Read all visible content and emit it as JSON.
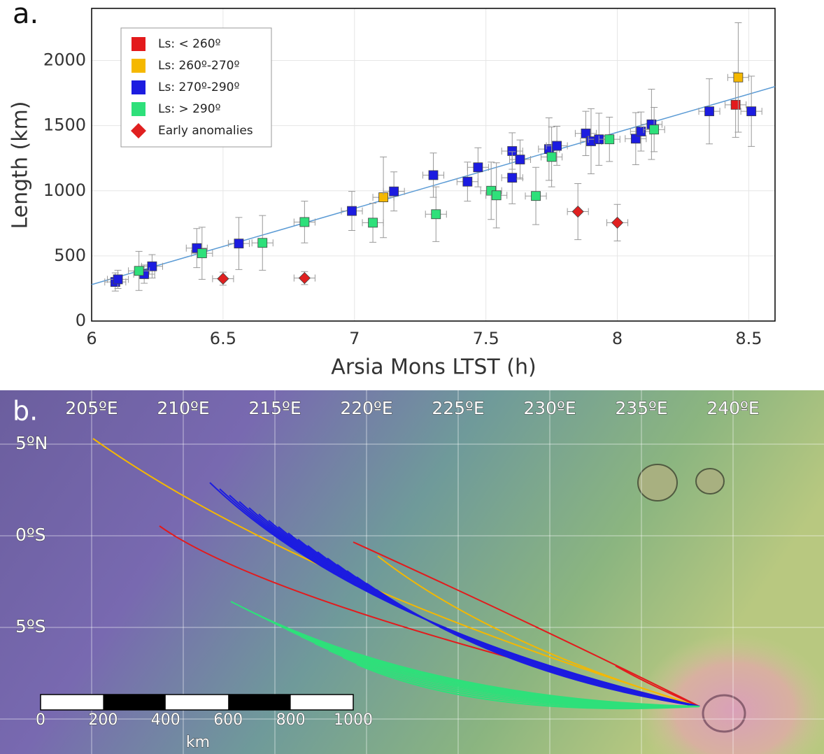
{
  "chart_data": {
    "type": "scatter",
    "panel_label": "a.",
    "x_label": "Arsia Mons LTST (h)",
    "y_label": "Length (km)",
    "xlim": [
      6,
      8.6
    ],
    "ylim": [
      0,
      2400
    ],
    "xticks": [
      6,
      6.5,
      7,
      7.5,
      8,
      8.5
    ],
    "yticks": [
      0,
      500,
      1000,
      1500,
      2000
    ],
    "grid": true,
    "legend": "upper left",
    "series": [
      {
        "name": "Ls: < 260º",
        "color": "#e31a1c",
        "marker": "square",
        "xerr": 0.04,
        "x": [
          8.45
        ],
        "values": [
          1660
        ],
        "yerr": [
          250
        ]
      },
      {
        "name": "Ls: 260º-270º",
        "color": "#f5b800",
        "marker": "square",
        "xerr": 0.04,
        "x": [
          7.11,
          8.46
        ],
        "values": [
          950,
          1870
        ],
        "yerr": [
          310,
          420
        ]
      },
      {
        "name": "Ls: 270º-290º",
        "color": "#1c1ce0",
        "marker": "square",
        "xerr": 0.04,
        "x": [
          6.09,
          6.1,
          6.2,
          6.23,
          6.4,
          6.56,
          6.99,
          7.15,
          7.3,
          7.43,
          7.47,
          7.6,
          7.6,
          7.63,
          7.74,
          7.77,
          7.88,
          7.9,
          7.93,
          8.07,
          8.09,
          8.13,
          8.35,
          8.51
        ],
        "values": [
          300,
          320,
          360,
          420,
          560,
          595,
          845,
          995,
          1120,
          1070,
          1180,
          1305,
          1100,
          1240,
          1320,
          1345,
          1440,
          1380,
          1395,
          1400,
          1455,
          1510,
          1610,
          1610
        ],
        "yerr": [
          70,
          70,
          70,
          90,
          150,
          200,
          150,
          150,
          170,
          150,
          150,
          140,
          200,
          150,
          240,
          150,
          170,
          250,
          200,
          200,
          150,
          270,
          250,
          270
        ]
      },
      {
        "name": "Ls: > 290º",
        "color": "#2ee07a",
        "marker": "square",
        "xerr": 0.04,
        "x": [
          6.18,
          6.42,
          6.65,
          6.81,
          7.07,
          7.31,
          7.52,
          7.54,
          7.69,
          7.75,
          7.97,
          8.14
        ],
        "values": [
          385,
          520,
          600,
          760,
          755,
          820,
          1000,
          965,
          960,
          1260,
          1395,
          1470
        ],
        "yerr": [
          150,
          200,
          210,
          160,
          150,
          210,
          220,
          250,
          220,
          230,
          170,
          170
        ]
      },
      {
        "name": "Early anomalies",
        "color": "#e02020",
        "marker": "diamond",
        "xerr": 0.04,
        "x": [
          6.5,
          6.81,
          7.85,
          8.0
        ],
        "values": [
          325,
          330,
          840,
          755
        ],
        "yerr": [
          50,
          50,
          215,
          140
        ]
      }
    ],
    "fit": {
      "x": [
        6,
        8.6
      ],
      "values": [
        280,
        1800
      ],
      "color": "#5b9bd5"
    }
  },
  "map": {
    "panel_label": "b.",
    "lon_labels": [
      "205ºE",
      "210ºE",
      "215ºE",
      "220ºE",
      "225ºE",
      "230ºE",
      "235ºE",
      "240ºE"
    ],
    "lat_labels": [
      "5ºN",
      "0ºS",
      "5ºS"
    ],
    "scale_bar": {
      "labels": [
        "0",
        "200",
        "400",
        "600",
        "800",
        "1000"
      ],
      "unit": "km"
    }
  }
}
